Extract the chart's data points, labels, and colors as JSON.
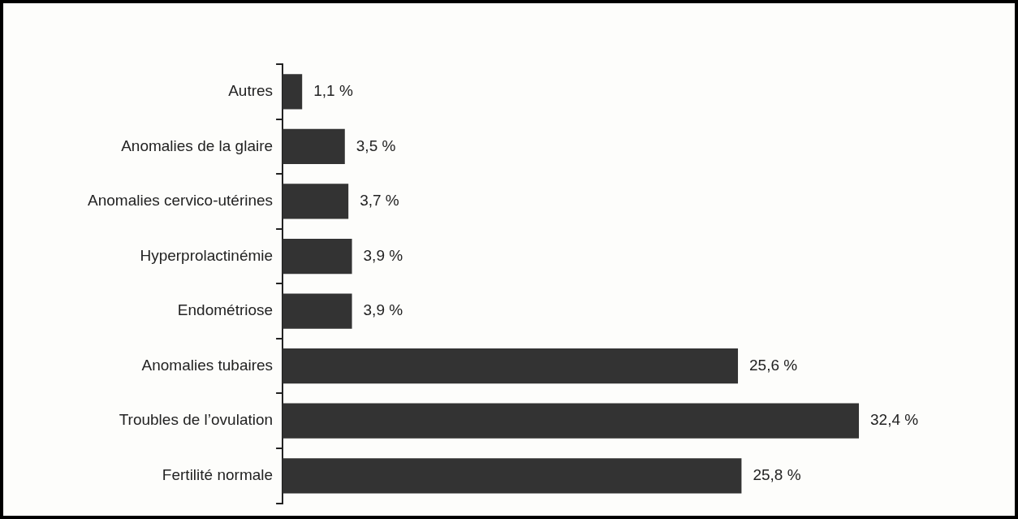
{
  "chart_data": {
    "type": "bar",
    "orientation": "horizontal",
    "categories": [
      "Autres",
      "Anomalies de la glaire",
      "Anomalies cervico-utérines",
      "Hyperprolactinémie",
      "Endométriose",
      "Anomalies tubaires",
      "Troubles de l’ovulation",
      "Fertilité normale"
    ],
    "values": [
      1.1,
      3.5,
      3.7,
      3.9,
      3.9,
      25.6,
      32.4,
      25.8
    ],
    "color": "#333333",
    "value_labels": [
      "1,1 %",
      "3,5 %",
      "3,7 %",
      "3,9 %",
      "3,9 %",
      "25,6 %",
      "32,4 %",
      "25,8 %"
    ],
    "legend": false
  }
}
